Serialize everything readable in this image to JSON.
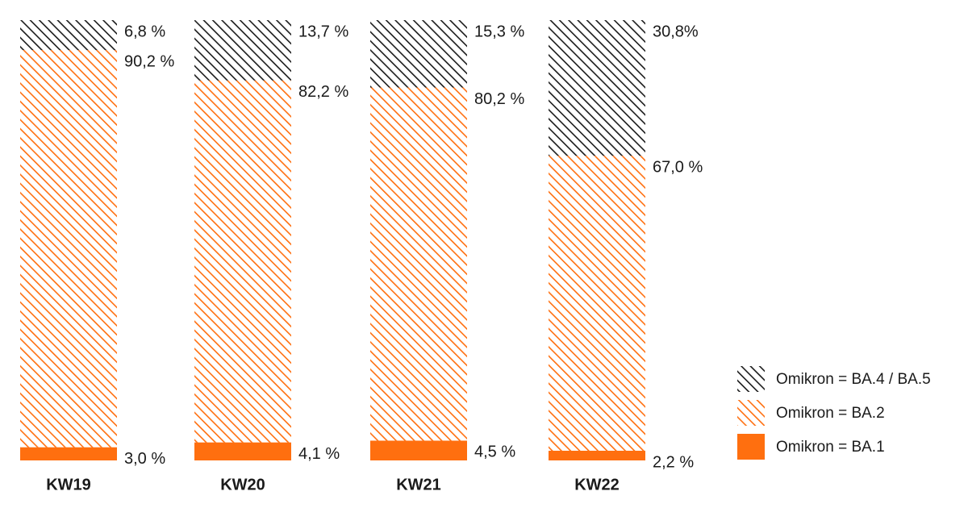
{
  "chart_data": {
    "type": "bar",
    "stacked": true,
    "categories": [
      "KW19",
      "KW20",
      "KW21",
      "KW22"
    ],
    "ylim": [
      0,
      100
    ],
    "grid": false,
    "legend_position": "bottom-right",
    "series": [
      {
        "name": "Omikron = BA.1",
        "pattern": "solid",
        "color": "#ff6f0f",
        "values": [
          3.0,
          4.1,
          4.5,
          2.2
        ],
        "labels": [
          "3,0 %",
          "4,1 %",
          "4,5 %",
          "2,2 %"
        ]
      },
      {
        "name": "Omikron = BA.2",
        "pattern": "hatched",
        "color": "#ff6f0f",
        "values": [
          90.2,
          82.2,
          80.2,
          67.0
        ],
        "labels": [
          "90,2 %",
          "82,2 %",
          "80,2 %",
          "67,0 %"
        ]
      },
      {
        "name": "Omikron = BA.4 / BA.5",
        "pattern": "hatched",
        "color": "#1a1a1a",
        "values": [
          6.8,
          13.7,
          15.3,
          30.8
        ],
        "labels": [
          "6,8 %",
          "13,7 %",
          "15,3 %",
          "30,8%"
        ]
      }
    ],
    "legend_order": [
      2,
      1,
      0
    ]
  }
}
